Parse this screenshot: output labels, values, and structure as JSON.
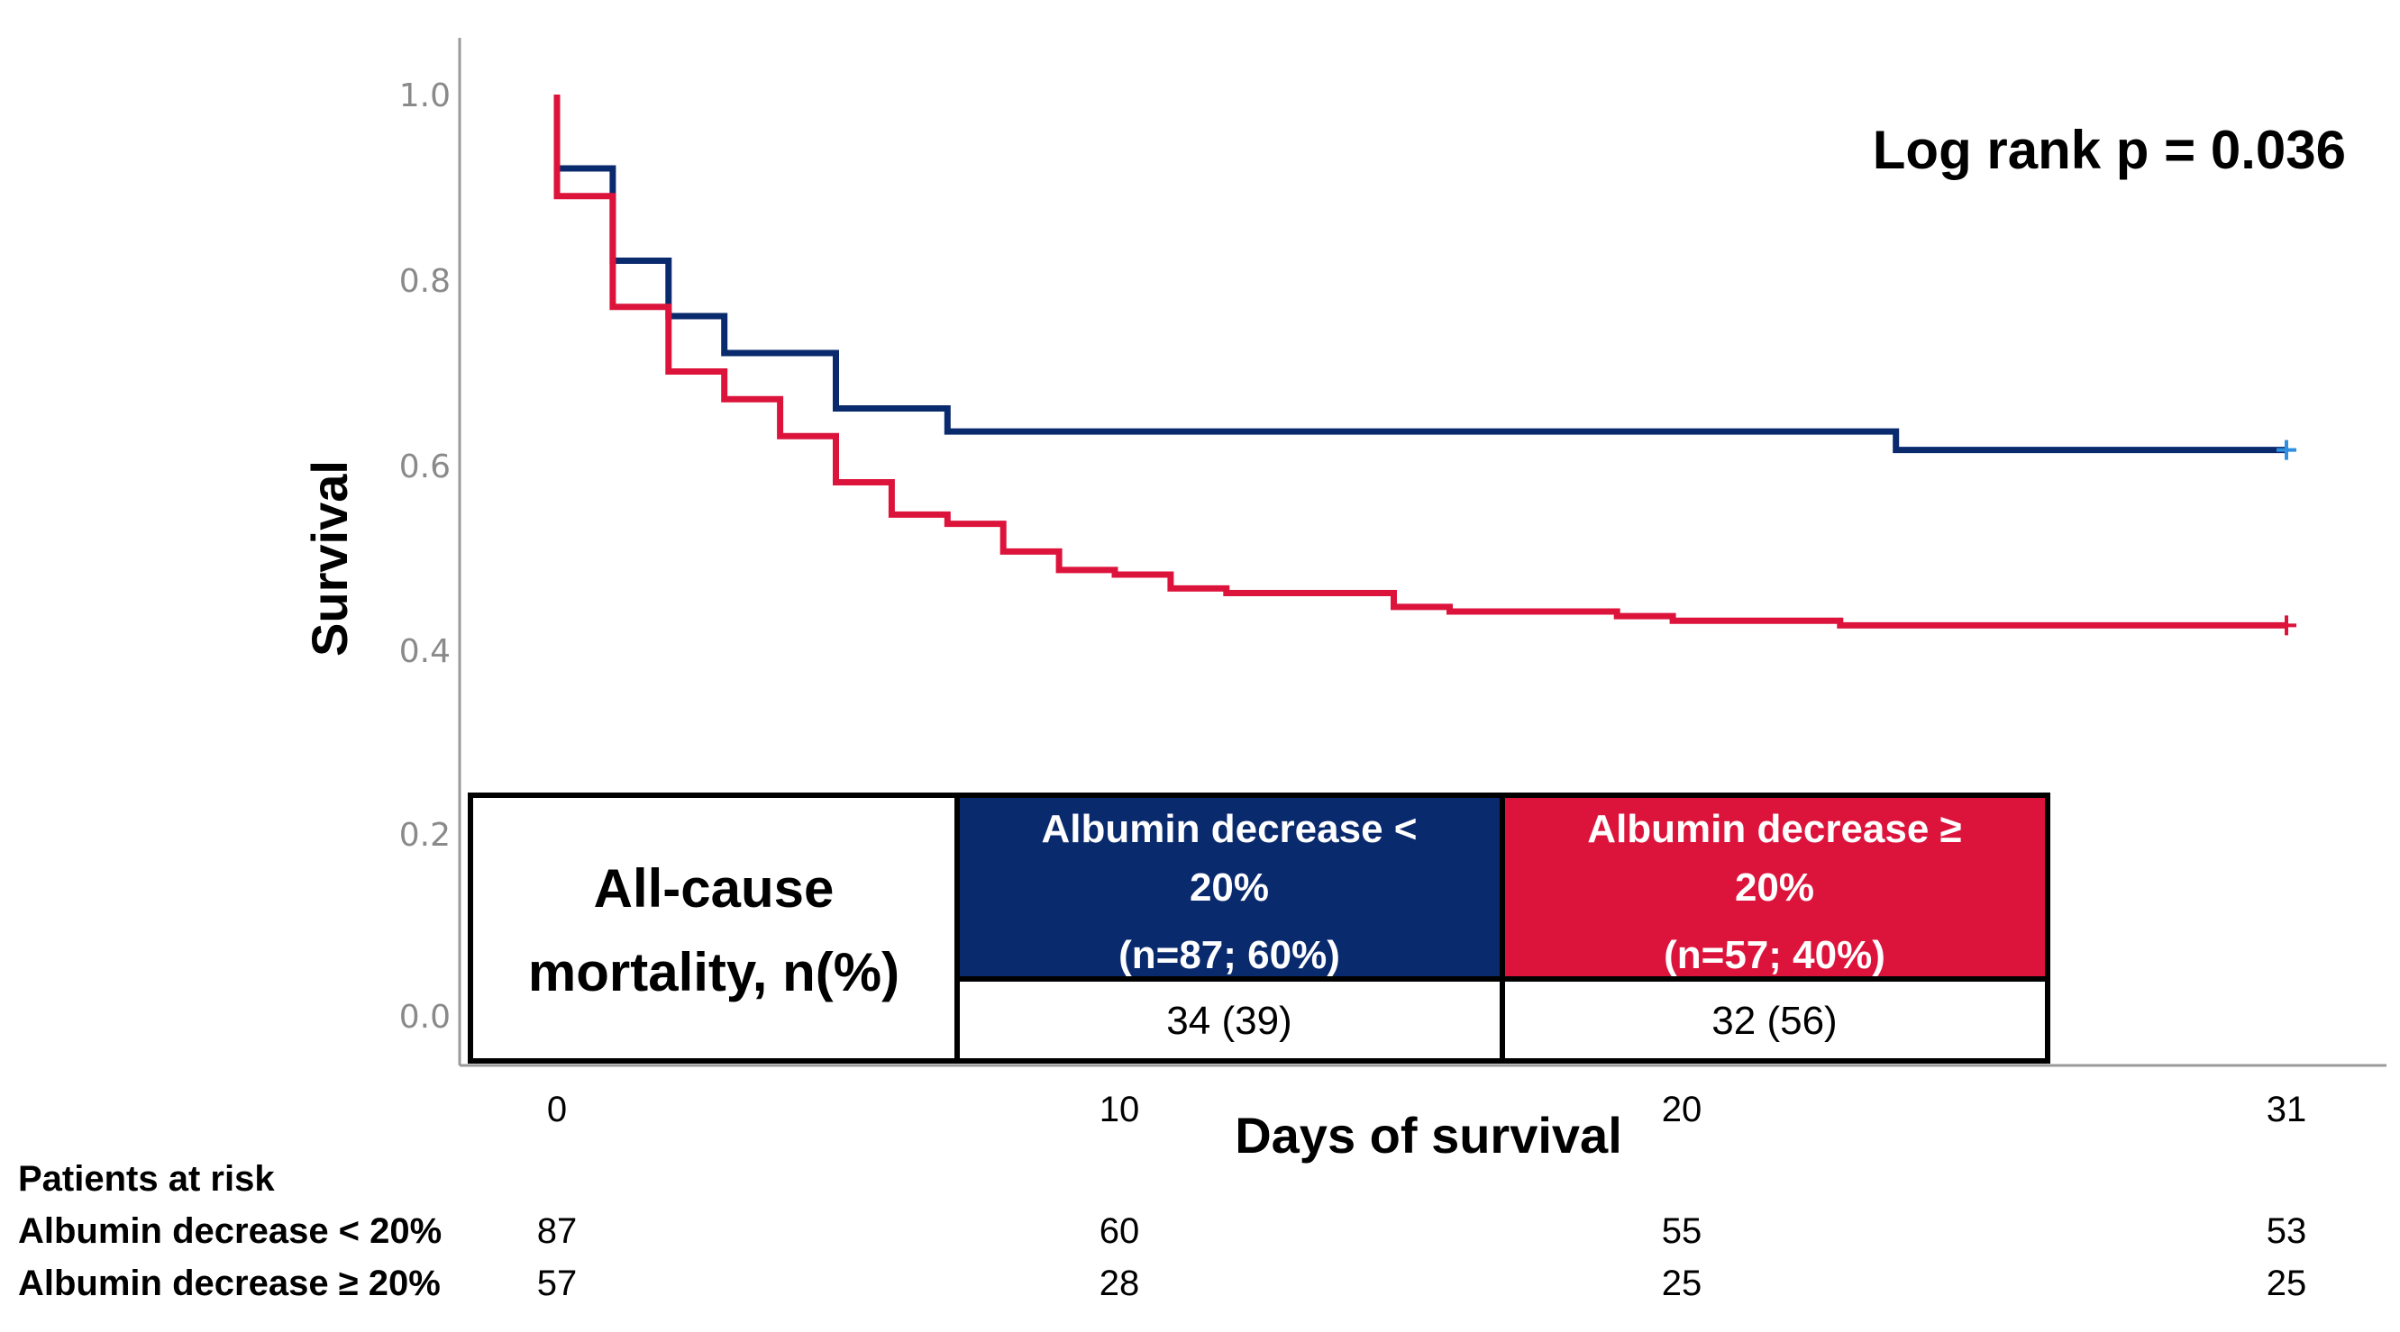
{
  "chart_data": {
    "type": "line",
    "subtype": "kaplan-meier",
    "xlabel": "Days of survival",
    "ylabel": "Survival",
    "x_ticks": [
      0,
      10,
      20,
      31
    ],
    "y_ticks": [
      "0.0",
      "0.2",
      "0.4",
      "0.6",
      "0.8",
      "1.0"
    ],
    "xlim": [
      0,
      31
    ],
    "ylim": [
      0,
      1.0
    ],
    "grid": false,
    "annotation": "Log rank p = 0.036",
    "colors": {
      "blue": "#0a2a6e",
      "red": "#dc143c",
      "censor_blue": "#2f8fe0"
    },
    "series": [
      {
        "color": "blue",
        "steps": [
          [
            0,
            1.0
          ],
          [
            0,
            0.92
          ],
          [
            1,
            0.92
          ],
          [
            1,
            0.82
          ],
          [
            2,
            0.82
          ],
          [
            2,
            0.76
          ],
          [
            3,
            0.76
          ],
          [
            3,
            0.72
          ],
          [
            5,
            0.72
          ],
          [
            5,
            0.66
          ],
          [
            7,
            0.66
          ],
          [
            7,
            0.635
          ],
          [
            24,
            0.635
          ],
          [
            24,
            0.615
          ],
          [
            31,
            0.615
          ]
        ],
        "censor": [
          [
            31,
            0.615
          ]
        ]
      },
      {
        "color": "red",
        "steps": [
          [
            0,
            1.0
          ],
          [
            0,
            0.89
          ],
          [
            1,
            0.89
          ],
          [
            1,
            0.77
          ],
          [
            2,
            0.77
          ],
          [
            2,
            0.7
          ],
          [
            3,
            0.7
          ],
          [
            3,
            0.67
          ],
          [
            4,
            0.67
          ],
          [
            4,
            0.63
          ],
          [
            5,
            0.63
          ],
          [
            5,
            0.58
          ],
          [
            6,
            0.58
          ],
          [
            6,
            0.545
          ],
          [
            7,
            0.545
          ],
          [
            7,
            0.535
          ],
          [
            8,
            0.535
          ],
          [
            8,
            0.505
          ],
          [
            9,
            0.505
          ],
          [
            9,
            0.485
          ],
          [
            10,
            0.485
          ],
          [
            10,
            0.48
          ],
          [
            11,
            0.48
          ],
          [
            11,
            0.465
          ],
          [
            12,
            0.465
          ],
          [
            12,
            0.46
          ],
          [
            15,
            0.46
          ],
          [
            15,
            0.445
          ],
          [
            16,
            0.445
          ],
          [
            16,
            0.44
          ],
          [
            19,
            0.44
          ],
          [
            19,
            0.435
          ],
          [
            20,
            0.435
          ],
          [
            20,
            0.43
          ],
          [
            23,
            0.43
          ],
          [
            23,
            0.425
          ],
          [
            31,
            0.425
          ]
        ],
        "censor": [
          [
            31,
            0.425
          ]
        ]
      }
    ],
    "table": {
      "header_left": [
        "All-cause",
        "mortality, n(%)"
      ],
      "columns": [
        {
          "lines": [
            "Albumin decrease <",
            "20%",
            "(n=87; 60%)"
          ],
          "value": "34 (39)",
          "color": "blue"
        },
        {
          "lines": [
            "Albumin decrease ≥",
            "20%",
            "(n=57; 40%)"
          ],
          "value": "32 (56)",
          "color": "red"
        }
      ]
    },
    "at_risk": {
      "title": "Patients at risk",
      "rows": [
        {
          "label": "Albumin decrease < 20%",
          "values": [
            "87",
            "60",
            "55",
            "53"
          ]
        },
        {
          "label": "Albumin decrease ≥ 20%",
          "values": [
            "57",
            "28",
            "25",
            "25"
          ]
        }
      ]
    }
  }
}
